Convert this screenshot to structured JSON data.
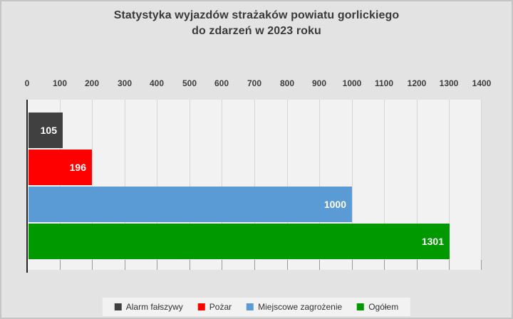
{
  "window": {
    "background": "#e3e3e3",
    "border_color": "#c5c5c5"
  },
  "title": {
    "line1": "Statystyka wyjazdów strażaków powiatu gorlickiego",
    "line2": "do zdarzeń w 2023 roku"
  },
  "chart_data": {
    "type": "bar",
    "orientation": "horizontal",
    "title": "Statystyka wyjazdów strażaków powiatu gorlickiego do zdarzeń w 2023 roku",
    "categories": [
      "Alarm fałszywy",
      "Pożar",
      "Miejscowe zagrożenie",
      "Ogółem"
    ],
    "values": [
      105,
      196,
      1000,
      1301
    ],
    "data_labels": [
      "105",
      "196",
      "1000",
      "1301"
    ],
    "series_colors": [
      "#404040",
      "#fe0000",
      "#5b9bd5",
      "#009a00"
    ],
    "value_axis": {
      "min": 0,
      "max": 1400,
      "step": 100,
      "position": "top",
      "tick_labels": [
        "0",
        "100",
        "200",
        "300",
        "400",
        "500",
        "600",
        "700",
        "800",
        "900",
        "1000",
        "1100",
        "1200",
        "1300",
        "1400"
      ]
    },
    "grid": true,
    "plot_background": "#f2f2f2",
    "gridline_color": "#d6d6d6",
    "axis_line_color": "#262626",
    "tick_color": "#9a9a9a",
    "text_color": "#3a3a3a",
    "value_label_color": "#ffffff",
    "legend": {
      "position": "bottom",
      "items": [
        {
          "label": "Alarm fałszywy",
          "color": "#404040"
        },
        {
          "label": "Pożar",
          "color": "#fe0000"
        },
        {
          "label": "Miejscowe zagrożenie",
          "color": "#5b9bd5"
        },
        {
          "label": "Ogółem",
          "color": "#009a00"
        }
      ]
    }
  }
}
